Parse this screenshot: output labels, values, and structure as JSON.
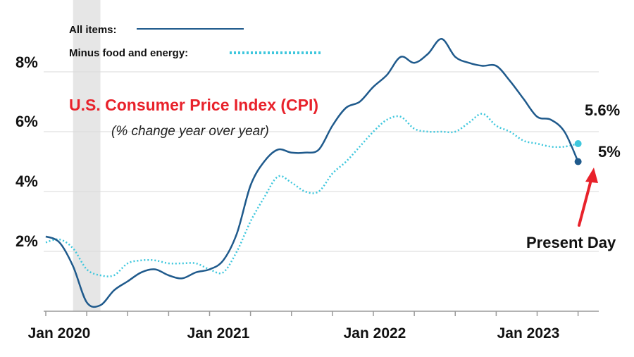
{
  "chart_data": {
    "type": "line",
    "title": "U.S. Consumer Price Index (CPI)",
    "subtitle": "(% change year over year)",
    "title_color": "#e8222b",
    "x_tick_labels": [
      "Jan 2020",
      "Jan 2021",
      "Jan 2022",
      "Jan 2023"
    ],
    "x_range": [
      0,
      40
    ],
    "y_tick_labels": [
      "2%",
      "4%",
      "6%",
      "8%"
    ],
    "y_ticks": [
      2,
      4,
      6,
      8
    ],
    "ylim": [
      0,
      9.5
    ],
    "grid": "horizontal",
    "legend_placement": "top-left",
    "shaded_region": {
      "x_range": [
        2,
        4
      ],
      "color": "#e6e6e6"
    },
    "series": [
      {
        "name": "All items:",
        "style": "solid",
        "color": "#1f5a8c",
        "x": [
          0,
          1,
          2,
          3,
          4,
          5,
          6,
          7,
          8,
          9,
          10,
          11,
          12,
          13,
          14,
          15,
          16,
          17,
          18,
          19,
          20,
          21,
          22,
          23,
          24,
          25,
          26,
          27,
          28,
          29,
          30,
          31,
          32,
          33,
          34,
          35,
          36,
          37,
          38,
          39
        ],
        "y": [
          2.5,
          2.3,
          1.5,
          0.3,
          0.2,
          0.7,
          1.0,
          1.3,
          1.4,
          1.2,
          1.1,
          1.3,
          1.4,
          1.7,
          2.6,
          4.2,
          5.0,
          5.4,
          5.3,
          5.3,
          5.4,
          6.2,
          6.8,
          7.0,
          7.5,
          7.9,
          8.5,
          8.3,
          8.6,
          9.1,
          8.5,
          8.3,
          8.2,
          8.2,
          7.7,
          7.1,
          6.5,
          6.4,
          6.0,
          5.0
        ]
      },
      {
        "name": "Minus food and energy:",
        "style": "dotted",
        "color": "#3ec7dd",
        "x": [
          0,
          1,
          2,
          3,
          4,
          5,
          6,
          7,
          8,
          9,
          10,
          11,
          12,
          13,
          14,
          15,
          16,
          17,
          18,
          19,
          20,
          21,
          22,
          23,
          24,
          25,
          26,
          27,
          28,
          29,
          30,
          31,
          32,
          33,
          34,
          35,
          36,
          37,
          38,
          39
        ],
        "y": [
          2.3,
          2.4,
          2.1,
          1.4,
          1.2,
          1.2,
          1.6,
          1.7,
          1.7,
          1.6,
          1.6,
          1.6,
          1.4,
          1.3,
          2.0,
          3.0,
          3.8,
          4.5,
          4.3,
          4.0,
          4.0,
          4.6,
          5.0,
          5.5,
          6.0,
          6.4,
          6.5,
          6.1,
          6.0,
          6.0,
          6.0,
          6.3,
          6.6,
          6.2,
          6.0,
          5.7,
          5.6,
          5.5,
          5.5,
          5.6
        ]
      }
    ],
    "annotations": [
      {
        "text": "5.6%",
        "series": 1,
        "x": 39,
        "y": 5.6
      },
      {
        "text": "5%",
        "series": 0,
        "x": 39,
        "y": 5.0
      },
      {
        "text": "Present Day",
        "arrow_color": "#e8222b"
      }
    ]
  }
}
